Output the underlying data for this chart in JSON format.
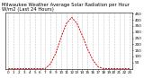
{
  "title": "Milwaukee Weather Average Solar Radiation per Hour W/m2 (Last 24 Hours)",
  "x_hours": [
    0,
    1,
    2,
    3,
    4,
    5,
    6,
    7,
    8,
    9,
    10,
    11,
    12,
    13,
    14,
    15,
    16,
    17,
    18,
    19,
    20,
    21,
    22,
    23
  ],
  "y_values": [
    0,
    0,
    0,
    0,
    0,
    0,
    0,
    2,
    40,
    130,
    260,
    370,
    420,
    370,
    270,
    160,
    70,
    15,
    1,
    0,
    0,
    0,
    0,
    0
  ],
  "line_color": "#dd0000",
  "bg_color": "#ffffff",
  "grid_color": "#999999",
  "ylim": [
    0,
    460
  ],
  "yticks": [
    50,
    100,
    150,
    200,
    250,
    300,
    350,
    400,
    450
  ],
  "title_fontsize": 3.8,
  "tick_fontsize": 3.0
}
